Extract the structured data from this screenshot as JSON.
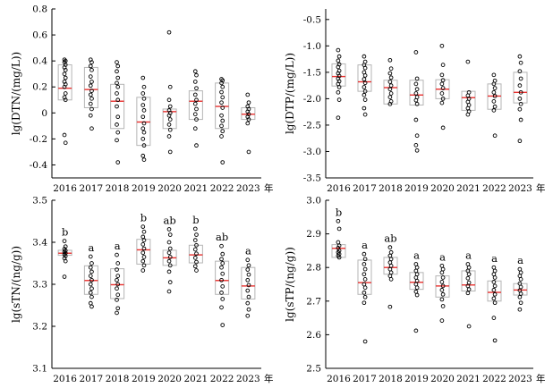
{
  "year_suffix": "年",
  "colors": {
    "box_edge": "#b5b5b5",
    "median": "#e8312f",
    "point": "#000000",
    "axis": "#000000"
  },
  "chart_data": [
    {
      "type": "box",
      "ylabel": "lg(DTN/(mg/L))",
      "ylim": [
        -0.5,
        0.8
      ],
      "yticks": [
        "-0.4",
        "-0.2",
        "0",
        "0.2",
        "0.4",
        "0.6",
        "0.8"
      ],
      "categories": [
        "2016",
        "2017",
        "2018",
        "2019",
        "2020",
        "2021",
        "2022",
        "2023"
      ],
      "boxes": [
        {
          "q1": 0.1,
          "median": 0.19,
          "q3": 0.37,
          "points": [
            0.41,
            0.4,
            0.39,
            0.37,
            0.35,
            0.33,
            0.3,
            0.27,
            0.24,
            0.22,
            0.2,
            0.15,
            0.12,
            0.1,
            -0.17,
            -0.23
          ]
        },
        {
          "q1": 0.04,
          "median": 0.18,
          "q3": 0.35,
          "points": [
            0.41,
            0.39,
            0.36,
            0.33,
            0.28,
            0.24,
            0.21,
            0.17,
            0.14,
            0.11,
            0.07,
            0.03,
            -0.02,
            -0.12
          ]
        },
        {
          "q1": -0.12,
          "median": 0.09,
          "q3": 0.22,
          "points": [
            0.39,
            0.36,
            0.32,
            0.27,
            0.23,
            0.2,
            0.15,
            0.1,
            0.05,
            -0.03,
            -0.09,
            -0.15,
            -0.21,
            -0.38
          ]
        },
        {
          "q1": -0.25,
          "median": -0.07,
          "q3": 0.12,
          "points": [
            0.27,
            0.2,
            0.15,
            0.11,
            0.06,
            0.02,
            -0.03,
            -0.08,
            -0.12,
            -0.15,
            -0.2,
            -0.25,
            -0.33,
            -0.36
          ]
        },
        {
          "q1": -0.12,
          "median": 0.01,
          "q3": 0.03,
          "points": [
            0.62,
            0.2,
            0.1,
            0.05,
            0.02,
            0.0,
            -0.02,
            -0.05,
            -0.09,
            -0.13,
            -0.18,
            -0.3
          ]
        },
        {
          "q1": -0.05,
          "median": 0.09,
          "q3": 0.17,
          "points": [
            0.32,
            0.29,
            0.24,
            0.19,
            0.14,
            0.1,
            0.07,
            0.03,
            -0.01,
            -0.05,
            -0.12,
            -0.25
          ]
        },
        {
          "q1": -0.12,
          "median": 0.05,
          "q3": 0.23,
          "points": [
            0.26,
            0.25,
            0.23,
            0.2,
            0.16,
            0.12,
            0.08,
            0.04,
            -0.02,
            -0.06,
            -0.1,
            -0.14,
            -0.18,
            -0.38
          ]
        },
        {
          "q1": -0.05,
          "median": -0.01,
          "q3": 0.04,
          "points": [
            0.14,
            0.08,
            0.05,
            0.03,
            0.01,
            -0.01,
            -0.03,
            -0.05,
            -0.08,
            -0.3
          ]
        }
      ]
    },
    {
      "type": "box",
      "ylabel": "lg(DTP/(mg/L))",
      "ylim": [
        -3.5,
        -0.3
      ],
      "yticks": [
        "-3.5",
        "-3.0",
        "-2.5",
        "-2.0",
        "-1.5",
        "-1.0",
        "-0.5"
      ],
      "categories": [
        "2016",
        "2017",
        "2018",
        "2019",
        "2020",
        "2021",
        "2022",
        "2023"
      ],
      "boxes": [
        {
          "q1": -1.76,
          "median": -1.58,
          "q3": -1.34,
          "points": [
            -1.08,
            -1.2,
            -1.28,
            -1.35,
            -1.4,
            -1.47,
            -1.52,
            -1.57,
            -1.62,
            -1.67,
            -1.72,
            -1.78,
            -1.88,
            -2.02,
            -2.36
          ]
        },
        {
          "q1": -1.86,
          "median": -1.68,
          "q3": -1.36,
          "points": [
            -1.2,
            -1.3,
            -1.36,
            -1.42,
            -1.5,
            -1.56,
            -1.63,
            -1.7,
            -1.78,
            -1.86,
            -1.93,
            -2.02,
            -2.18,
            -2.3
          ]
        },
        {
          "q1": -2.1,
          "median": -1.79,
          "q3": -1.65,
          "points": [
            -1.27,
            -1.43,
            -1.52,
            -1.6,
            -1.68,
            -1.75,
            -1.82,
            -1.9,
            -1.97,
            -2.05,
            -2.1
          ]
        },
        {
          "q1": -2.12,
          "median": -1.93,
          "q3": -1.65,
          "points": [
            -1.12,
            -1.62,
            -1.72,
            -1.82,
            -1.9,
            -1.97,
            -2.03,
            -2.1,
            -2.4,
            -2.7,
            -2.88,
            -2.98
          ]
        },
        {
          "q1": -2.0,
          "median": -1.82,
          "q3": -1.64,
          "points": [
            -1.0,
            -1.36,
            -1.55,
            -1.65,
            -1.72,
            -1.8,
            -1.9,
            -2.0,
            -2.08,
            -2.55
          ]
        },
        {
          "q1": -2.22,
          "median": -1.98,
          "q3": -1.86,
          "points": [
            -1.3,
            -1.88,
            -1.94,
            -2.0,
            -2.06,
            -2.12,
            -2.18,
            -2.24,
            -2.3
          ]
        },
        {
          "q1": -2.2,
          "median": -1.95,
          "q3": -1.72,
          "points": [
            -1.55,
            -1.66,
            -1.72,
            -1.8,
            -1.88,
            -1.95,
            -2.05,
            -2.15,
            -2.22,
            -2.7
          ]
        },
        {
          "q1": -2.08,
          "median": -1.88,
          "q3": -1.5,
          "points": [
            -1.2,
            -1.32,
            -1.48,
            -1.62,
            -1.75,
            -1.88,
            -2.0,
            -2.1,
            -2.2,
            -2.4,
            -2.8
          ]
        }
      ]
    },
    {
      "type": "box",
      "ylabel": "lg(sTN/(ng/g))",
      "ylim": [
        3.1,
        3.5
      ],
      "yticks": [
        "3.1",
        "3.2",
        "3.3",
        "3.4",
        "3.5"
      ],
      "categories": [
        "2016",
        "2017",
        "2018",
        "2019",
        "2020",
        "2021",
        "2022",
        "2023"
      ],
      "significance": [
        "b",
        "a",
        "a",
        "b",
        "ab",
        "b",
        "ab",
        "a"
      ],
      "boxes": [
        {
          "q1": 3.369,
          "median": 3.374,
          "q3": 3.381,
          "points": [
            3.403,
            3.39,
            3.384,
            3.38,
            3.377,
            3.374,
            3.371,
            3.367,
            3.362,
            3.355,
            3.318
          ]
        },
        {
          "q1": 3.276,
          "median": 3.309,
          "q3": 3.344,
          "points": [
            3.366,
            3.35,
            3.34,
            3.33,
            3.32,
            3.31,
            3.3,
            3.29,
            3.28,
            3.27,
            3.255,
            3.247
          ]
        },
        {
          "q1": 3.266,
          "median": 3.299,
          "q3": 3.337,
          "points": [
            3.37,
            3.35,
            3.335,
            3.32,
            3.31,
            3.3,
            3.29,
            3.275,
            3.263,
            3.243,
            3.232
          ]
        },
        {
          "q1": 3.348,
          "median": 3.382,
          "q3": 3.407,
          "points": [
            3.437,
            3.425,
            3.413,
            3.405,
            3.395,
            3.385,
            3.375,
            3.365,
            3.355,
            3.345,
            3.333
          ]
        },
        {
          "q1": 3.345,
          "median": 3.363,
          "q3": 3.381,
          "points": [
            3.431,
            3.418,
            3.4,
            3.385,
            3.375,
            3.365,
            3.355,
            3.345,
            3.33,
            3.305,
            3.283
          ]
        },
        {
          "q1": 3.351,
          "median": 3.37,
          "q3": 3.393,
          "points": [
            3.432,
            3.418,
            3.405,
            3.393,
            3.383,
            3.373,
            3.363,
            3.353,
            3.343,
            3.333
          ]
        },
        {
          "q1": 3.276,
          "median": 3.309,
          "q3": 3.355,
          "points": [
            3.391,
            3.372,
            3.36,
            3.35,
            3.34,
            3.325,
            3.31,
            3.295,
            3.28,
            3.265,
            3.245,
            3.203
          ]
        },
        {
          "q1": 3.265,
          "median": 3.296,
          "q3": 3.34,
          "points": [
            3.358,
            3.345,
            3.335,
            3.323,
            3.31,
            3.298,
            3.285,
            3.27,
            3.255,
            3.24,
            3.225
          ]
        }
      ]
    },
    {
      "type": "box",
      "ylabel": "lg(sTP/(ng/g))",
      "ylim": [
        2.5,
        3.0
      ],
      "yticks": [
        "2.5",
        "2.6",
        "2.7",
        "2.8",
        "2.9",
        "3.0"
      ],
      "categories": [
        "2016",
        "2017",
        "2018",
        "2019",
        "2020",
        "2021",
        "2022",
        "2023"
      ],
      "significance": [
        "b",
        "a",
        "ab",
        "a",
        "a",
        "a",
        "a",
        "a"
      ],
      "boxes": [
        {
          "q1": 2.83,
          "median": 2.857,
          "q3": 2.868,
          "points": [
            2.938,
            2.915,
            2.875,
            2.865,
            2.858,
            2.85,
            2.845,
            2.84,
            2.835,
            2.83
          ]
        },
        {
          "q1": 2.72,
          "median": 2.755,
          "q3": 2.822,
          "points": [
            2.84,
            2.825,
            2.81,
            2.795,
            2.78,
            2.765,
            2.75,
            2.74,
            2.725,
            2.712,
            2.695,
            2.58
          ]
        },
        {
          "q1": 2.78,
          "median": 2.8,
          "q3": 2.83,
          "points": [
            2.86,
            2.845,
            2.835,
            2.825,
            2.815,
            2.805,
            2.795,
            2.785,
            2.775,
            2.765,
            2.683
          ]
        },
        {
          "q1": 2.735,
          "median": 2.756,
          "q3": 2.785,
          "points": [
            2.81,
            2.8,
            2.79,
            2.78,
            2.77,
            2.76,
            2.75,
            2.74,
            2.728,
            2.718,
            2.612
          ]
        },
        {
          "q1": 2.712,
          "median": 2.745,
          "q3": 2.775,
          "points": [
            2.805,
            2.795,
            2.785,
            2.77,
            2.757,
            2.745,
            2.733,
            2.72,
            2.705,
            2.685,
            2.642
          ]
        },
        {
          "q1": 2.73,
          "median": 2.748,
          "q3": 2.79,
          "points": [
            2.81,
            2.8,
            2.79,
            2.78,
            2.768,
            2.755,
            2.745,
            2.735,
            2.724,
            2.625
          ]
        },
        {
          "q1": 2.7,
          "median": 2.726,
          "q3": 2.76,
          "points": [
            2.8,
            2.79,
            2.78,
            2.77,
            2.757,
            2.745,
            2.733,
            2.72,
            2.708,
            2.695,
            2.65,
            2.583
          ]
        },
        {
          "q1": 2.718,
          "median": 2.733,
          "q3": 2.752,
          "points": [
            2.795,
            2.785,
            2.775,
            2.765,
            2.752,
            2.742,
            2.732,
            2.722,
            2.712,
            2.695,
            2.675
          ]
        }
      ]
    }
  ]
}
